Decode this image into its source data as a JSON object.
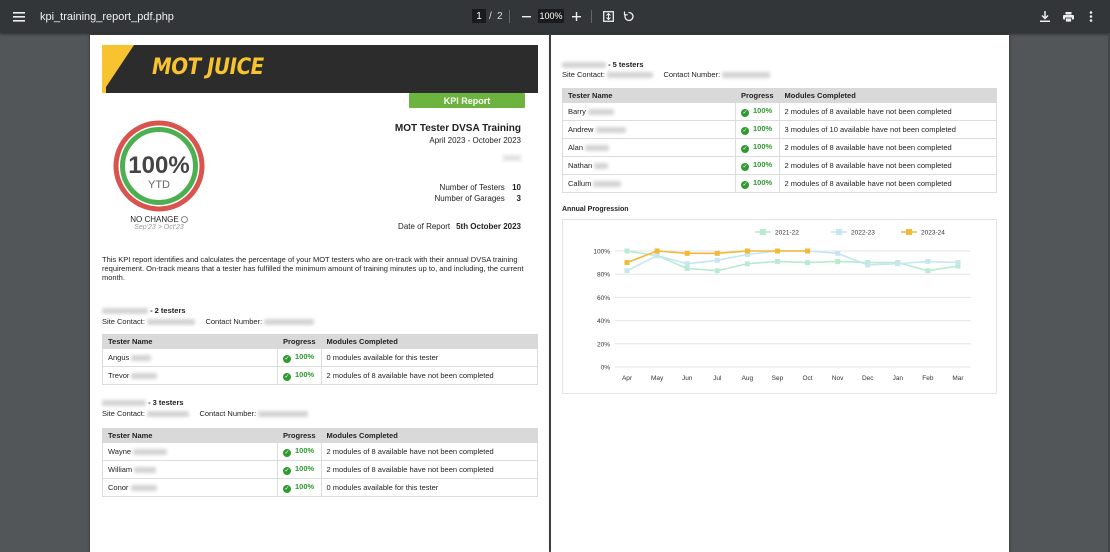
{
  "toolbar": {
    "title": "kpi_training_report_pdf.php",
    "page_current": "1",
    "page_sep": "/",
    "page_total": "2",
    "zoom": "100%"
  },
  "report": {
    "logo_text": "MOT JUICE",
    "kpi_button": "KPI Report",
    "gauge_pct": "100%",
    "gauge_ytd": "YTD",
    "gauge_value": 1.0,
    "no_change": "NO CHANGE",
    "period_compare": "Sep'23 > Oct'23",
    "title": "MOT Tester DVSA Training",
    "range": "April 2023 - October 2023",
    "testers_label": "Number of Testers",
    "testers_value": "10",
    "garages_label": "Number of Garages",
    "garages_value": "3",
    "date_label": "Date of Report",
    "date_value": "5th October 2023",
    "intro": "This KPI report identifies and calculates the percentage of your MOT testers who are on-track with their annual DVSA training requirement. On-track means that a tester has fulfilled the minimum amount of training minutes up to, and including, the current month."
  },
  "labels": {
    "site_contact": "Site Contact:",
    "contact_number": "Contact Number:",
    "col_name": "Tester Name",
    "col_progress": "Progress",
    "col_modules": "Modules Completed"
  },
  "sites": [
    {
      "count": "- 2 testers",
      "rows": [
        {
          "name": "Angus",
          "progress": "100%",
          "modules": "0 modules available for this tester"
        },
        {
          "name": "Trevor",
          "progress": "100%",
          "modules": "2 modules of 8 available have not been completed"
        }
      ]
    },
    {
      "count": "- 3 testers",
      "rows": [
        {
          "name": "Wayne",
          "progress": "100%",
          "modules": "2 modules of 8 available have not been completed"
        },
        {
          "name": "William",
          "progress": "100%",
          "modules": "2 modules of 8 available have not been completed"
        },
        {
          "name": "Conor",
          "progress": "100%",
          "modules": "0 modules available for this tester"
        }
      ]
    },
    {
      "count": "- 5 testers",
      "rows": [
        {
          "name": "Barry",
          "progress": "100%",
          "modules": "2 modules of 8 available have not been completed"
        },
        {
          "name": "Andrew",
          "progress": "100%",
          "modules": "3 modules of 10 available have not been completed"
        },
        {
          "name": "Alan",
          "progress": "100%",
          "modules": "2 modules of 8 available have not been completed"
        },
        {
          "name": "Nathan",
          "progress": "100%",
          "modules": "2 modules of 8 available have not been completed"
        },
        {
          "name": "Callum",
          "progress": "100%",
          "modules": "2 modules of 8 available have not been completed"
        }
      ]
    }
  ],
  "colors": {
    "accent_green": "#6db33f",
    "ring_red": "#d9534f",
    "ring_green": "#4caf50",
    "progress_green": "#2f9a2f",
    "logo_yellow": "#f7c32e"
  },
  "chart_data": {
    "type": "line",
    "title": "Annual Progression",
    "categories": [
      "Apr",
      "May",
      "Jun",
      "Jul",
      "Aug",
      "Sep",
      "Oct",
      "Nov",
      "Dec",
      "Jan",
      "Feb",
      "Mar"
    ],
    "ylim": [
      0,
      100
    ],
    "yticks": [
      "0%",
      "20%",
      "40%",
      "60%",
      "80%",
      "100%"
    ],
    "legend_position": "top",
    "grid": true,
    "series": [
      {
        "name": "2021-22",
        "color": "#b8ebcf",
        "values": [
          100,
          96,
          85,
          83,
          89,
          91,
          90,
          91,
          90,
          90,
          83,
          87
        ]
      },
      {
        "name": "2022-23",
        "color": "#c6e6f2",
        "values": [
          83,
          96,
          89,
          92,
          97,
          100,
          100,
          98,
          88,
          89,
          91,
          90
        ]
      },
      {
        "name": "2023-24",
        "color": "#f2b83a",
        "values": [
          90,
          100,
          98,
          98,
          100,
          100,
          100,
          null,
          null,
          null,
          null,
          null
        ]
      }
    ]
  }
}
